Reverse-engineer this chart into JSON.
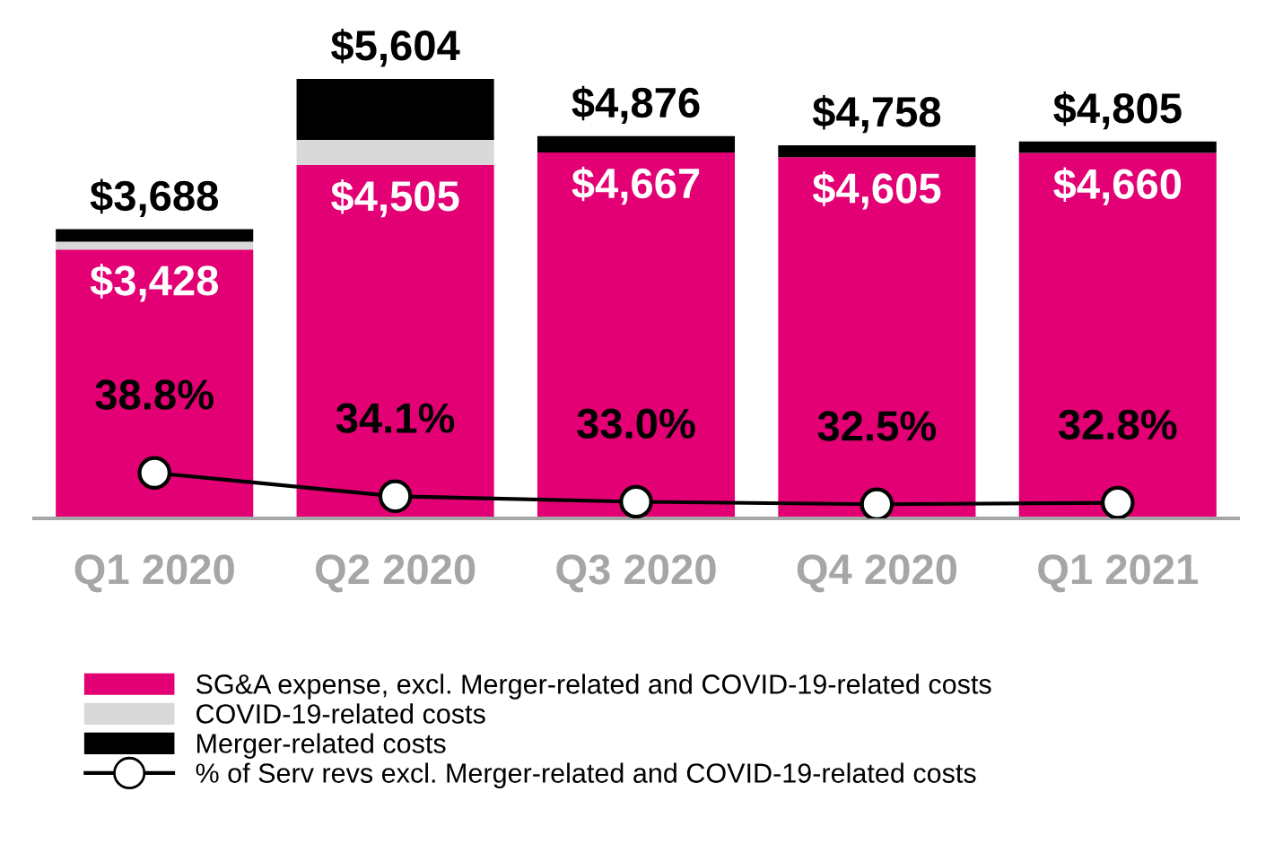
{
  "chart_data": {
    "type": "bar",
    "stacked": true,
    "categories": [
      "Q1 2020",
      "Q2 2020",
      "Q3 2020",
      "Q4 2020",
      "Q1 2021"
    ],
    "series": [
      {
        "name": "SG&A expense, excl. Merger-related and COVID-19-related costs",
        "color": "#e20074",
        "values": [
          3428,
          4505,
          4667,
          4605,
          4660
        ],
        "value_labels": [
          "$3,428",
          "$4,505",
          "$4,667",
          "$4,605",
          "$4,660"
        ]
      },
      {
        "name": "COVID-19-related costs",
        "color": "#d9d9d9",
        "values": [
          100,
          320,
          0,
          0,
          0
        ]
      },
      {
        "name": "Merger-related costs",
        "color": "#000000",
        "values": [
          160,
          779,
          209,
          153,
          145
        ]
      },
      {
        "name": "% of Serv revs excl. Merger-related and COVID-19-related costs",
        "type": "line",
        "axis": "y2",
        "color": "#000000",
        "marker": "circle",
        "values": [
          38.8,
          34.1,
          33.0,
          32.5,
          32.8
        ],
        "value_labels": [
          "38.8%",
          "34.1%",
          "33.0%",
          "32.5%",
          "32.8%"
        ]
      }
    ],
    "totals": [
      "$3,688",
      "$5,604",
      "$4,876",
      "$4,758",
      "$4,805"
    ],
    "tick_labels": "x",
    "grid": false,
    "legend": "bottom"
  }
}
